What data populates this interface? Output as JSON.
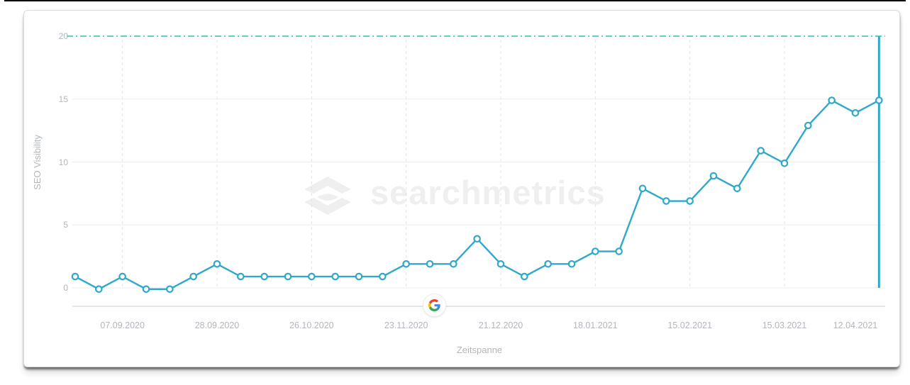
{
  "watermark": {
    "text": "searchmetrics",
    "color": "#EFEFEF"
  },
  "chart_data": {
    "type": "line",
    "ylabel": "SEO Visibility",
    "xlabel": "Zeitspanne",
    "ylim": [
      0,
      20
    ],
    "y_ticks": [
      0,
      5,
      10,
      15,
      20
    ],
    "x_ticks": [
      {
        "label": "07.09.2020",
        "point_index": 2
      },
      {
        "label": "28.09.2020",
        "point_index": 6
      },
      {
        "label": "26.10.2020",
        "point_index": 10
      },
      {
        "label": "23.11.2020",
        "point_index": 14
      },
      {
        "label": "21.12.2020",
        "point_index": 18
      },
      {
        "label": "18.01.2021",
        "point_index": 22
      },
      {
        "label": "15.02.2021",
        "point_index": 26
      },
      {
        "label": "15.03.2021",
        "point_index": 30
      },
      {
        "label": "12.04.2021",
        "point_index": 33,
        "gridline_point_index": 34
      }
    ],
    "series": [
      {
        "name": "SEO Visibility",
        "color": "#2FA9C9",
        "marker": "open-circle",
        "values": [
          0.9,
          -0.1,
          0.9,
          -0.1,
          -0.1,
          0.9,
          1.9,
          0.9,
          0.9,
          0.9,
          0.9,
          0.9,
          0.9,
          0.9,
          1.9,
          1.9,
          1.9,
          3.9,
          1.9,
          0.9,
          1.9,
          1.9,
          2.9,
          2.9,
          7.9,
          6.9,
          6.9,
          8.9,
          7.9,
          10.9,
          9.9,
          12.9,
          14.9,
          13.9,
          14.9
        ]
      }
    ],
    "reference_line_top": {
      "value": 20,
      "style": "dash-dot",
      "color": "#2EBFAD"
    },
    "current_week_marker_line": {
      "point_index": 34,
      "color": "#2FA9C9"
    },
    "google_annotation": {
      "icon": "google-g-icon",
      "x_index": 15.2
    },
    "grid": true,
    "legend": false,
    "colors": {
      "grid_horizontal": "#ECECEC",
      "grid_vertical": "#E4E4E4",
      "axis_line": "#DEDEDE",
      "tick_text": "#B3B6BB",
      "card_border": "#DBDBDB",
      "screen_edge": "#000000",
      "google_blue": "#4285F4",
      "google_green": "#34A853",
      "google_yellow": "#FBBC05",
      "google_red": "#EA4335"
    }
  }
}
